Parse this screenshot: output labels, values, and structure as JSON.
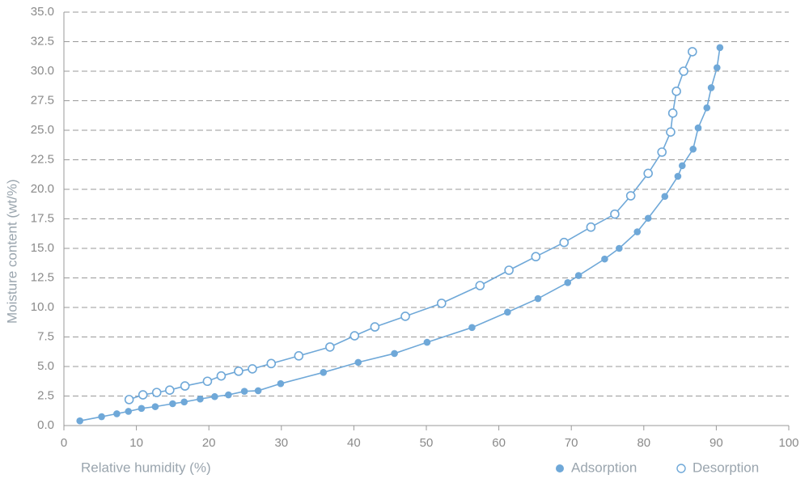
{
  "chart_data": {
    "type": "line",
    "x_label": "Relative humidity (%)",
    "y_label": "Moisture content (wt/%)",
    "xlim": [
      0,
      100
    ],
    "xticks": [
      0,
      10,
      20,
      30,
      40,
      50,
      60,
      70,
      80,
      90,
      100
    ],
    "ylim": [
      0,
      35
    ],
    "yticks": [
      {
        "value": 0,
        "label": "0.0"
      },
      2.5,
      {
        "value": 5,
        "label": "5.0"
      },
      7.5,
      {
        "value": 10,
        "label": "10.0"
      },
      12.5,
      {
        "value": 15,
        "label": "15.0"
      },
      17.5,
      {
        "value": 20,
        "label": "20.0"
      },
      22.5,
      {
        "value": 25,
        "label": "25.0"
      },
      27.5,
      {
        "value": 30,
        "label": "30.0"
      },
      32.5,
      {
        "value": 35,
        "label": "35.0"
      }
    ],
    "grid": true,
    "legend": "bottom-right",
    "series": [
      {
        "name": "Adsorption",
        "color": "#6fa8d8",
        "hollow": false,
        "x": [
          2.2,
          5.2,
          7.3,
          8.9,
          10.7,
          12.6,
          15.0,
          16.6,
          18.8,
          20.8,
          22.7,
          24.9,
          26.8,
          29.9,
          35.8,
          40.6,
          45.6,
          50.1,
          56.3,
          61.2,
          65.4,
          69.5,
          71.0,
          74.6,
          76.6,
          79.1,
          80.6,
          82.9,
          84.7,
          85.3,
          86.8,
          87.5,
          88.7,
          89.3,
          90.1,
          90.5
        ],
        "values": [
          0.4,
          0.75,
          1.0,
          1.2,
          1.45,
          1.6,
          1.85,
          2.0,
          2.25,
          2.45,
          2.6,
          2.9,
          2.95,
          3.55,
          4.5,
          5.35,
          6.1,
          7.05,
          8.3,
          9.6,
          10.75,
          12.1,
          12.7,
          14.1,
          15.0,
          16.4,
          17.55,
          19.4,
          21.1,
          22.0,
          23.4,
          25.2,
          26.9,
          28.6,
          30.3,
          32.0
        ]
      },
      {
        "name": "Desorption",
        "color": "#6fa8d8",
        "hollow": true,
        "x": [
          9.0,
          10.9,
          12.8,
          14.6,
          16.7,
          19.8,
          21.7,
          24.1,
          26.0,
          28.6,
          32.4,
          36.7,
          40.1,
          42.9,
          47.1,
          52.1,
          57.4,
          61.4,
          65.1,
          69.0,
          72.7,
          76.0,
          78.2,
          80.6,
          82.5,
          83.7,
          84.0,
          84.5,
          85.5,
          86.7
        ],
        "values": [
          2.2,
          2.6,
          2.8,
          3.0,
          3.35,
          3.75,
          4.2,
          4.6,
          4.8,
          5.25,
          5.9,
          6.65,
          7.6,
          8.35,
          9.25,
          10.35,
          11.85,
          13.15,
          14.3,
          15.5,
          16.8,
          17.9,
          19.45,
          21.35,
          23.15,
          24.85,
          26.45,
          28.3,
          30.0,
          31.65
        ]
      }
    ]
  }
}
